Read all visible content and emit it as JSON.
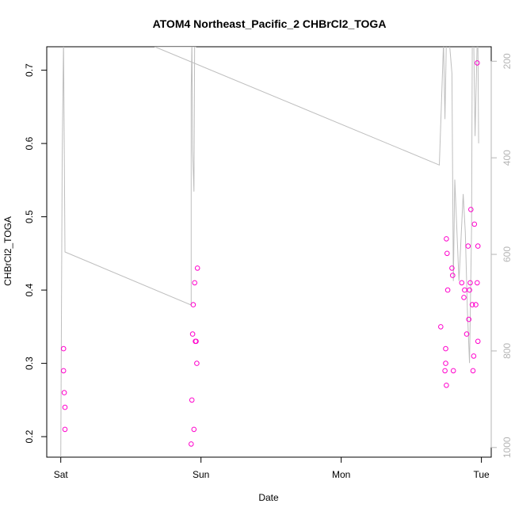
{
  "chart_data": {
    "type": "scatter",
    "title": "ATOM4 Northeast_Pacific_2 CHBrCl2_TOGA",
    "xlabel": "Date",
    "ylabel": "CHBrCl2_TOGA",
    "x_ticks": [
      {
        "label": "Sat",
        "value": 0
      },
      {
        "label": "Sun",
        "value": 1
      },
      {
        "label": "Mon",
        "value": 2
      },
      {
        "label": "Tue",
        "value": 3
      }
    ],
    "xlim": [
      -0.1,
      3.07
    ],
    "ylim": [
      0.172,
      0.732
    ],
    "y_ticks": [
      0.2,
      0.3,
      0.4,
      0.5,
      0.6,
      0.7
    ],
    "y2_ticks": [
      200,
      400,
      600,
      800,
      1000
    ],
    "y2lim": [
      1020,
      170
    ],
    "y2_reversed": true,
    "grid": false,
    "colors": {
      "points": "#ff00cc",
      "line": "#bebebe",
      "axis": "#000000",
      "right_axis": "#b5b5b5"
    },
    "series": [
      {
        "kind": "points",
        "axis": "left",
        "x": [
          0.02,
          0.02,
          0.025,
          0.03,
          0.03,
          0.93,
          0.935,
          0.94,
          0.945,
          0.95,
          0.955,
          0.96,
          0.965,
          0.97,
          0.975,
          2.71,
          2.74,
          2.745,
          2.745,
          2.75,
          2.75,
          2.755,
          2.76,
          2.79,
          2.795,
          2.8,
          2.86,
          2.875,
          2.88,
          2.895,
          2.905,
          2.91,
          2.915,
          2.92,
          2.925,
          2.935,
          2.94,
          2.945,
          2.95,
          2.96,
          2.97,
          2.975
        ],
        "y": [
          0.32,
          0.29,
          0.26,
          0.24,
          0.21,
          0.19,
          0.25,
          0.34,
          0.38,
          0.21,
          0.41,
          0.33,
          0.33,
          0.3,
          0.43,
          0.35,
          0.29,
          0.3,
          0.32,
          0.27,
          0.47,
          0.45,
          0.4,
          0.43,
          0.42,
          0.29,
          0.41,
          0.39,
          0.4,
          0.34,
          0.46,
          0.36,
          0.4,
          0.41,
          0.51,
          0.38,
          0.29,
          0.31,
          0.49,
          0.38,
          0.41,
          0.46
        ],
        "extra_points": [
          {
            "x": 2.975,
            "y": 0.33
          },
          {
            "x": 2.97,
            "y": 0.71
          }
        ]
      },
      {
        "kind": "line",
        "axis": "right",
        "x": [
          0.0,
          0.01,
          0.02,
          0.03,
          0.93,
          0.93,
          0.935,
          0.94,
          0.95,
          0.955,
          0.96,
          0.965,
          0.67,
          2.7,
          2.73,
          2.74,
          2.75,
          2.76,
          2.77,
          2.79,
          2.8,
          2.81,
          2.84,
          2.87,
          2.885,
          2.9,
          2.915,
          2.93,
          2.935,
          2.945,
          2.955,
          2.97,
          2.975,
          2.98
        ],
        "y": [
          1020,
          400,
          155,
          595,
          705,
          265,
          155,
          385,
          470,
          155,
          170,
          170,
          170,
          415,
          160,
          320,
          155,
          160,
          155,
          225,
          655,
          445,
          655,
          475,
          555,
          715,
          825,
          545,
          155,
          155,
          355,
          155,
          170,
          370
        ]
      }
    ]
  }
}
